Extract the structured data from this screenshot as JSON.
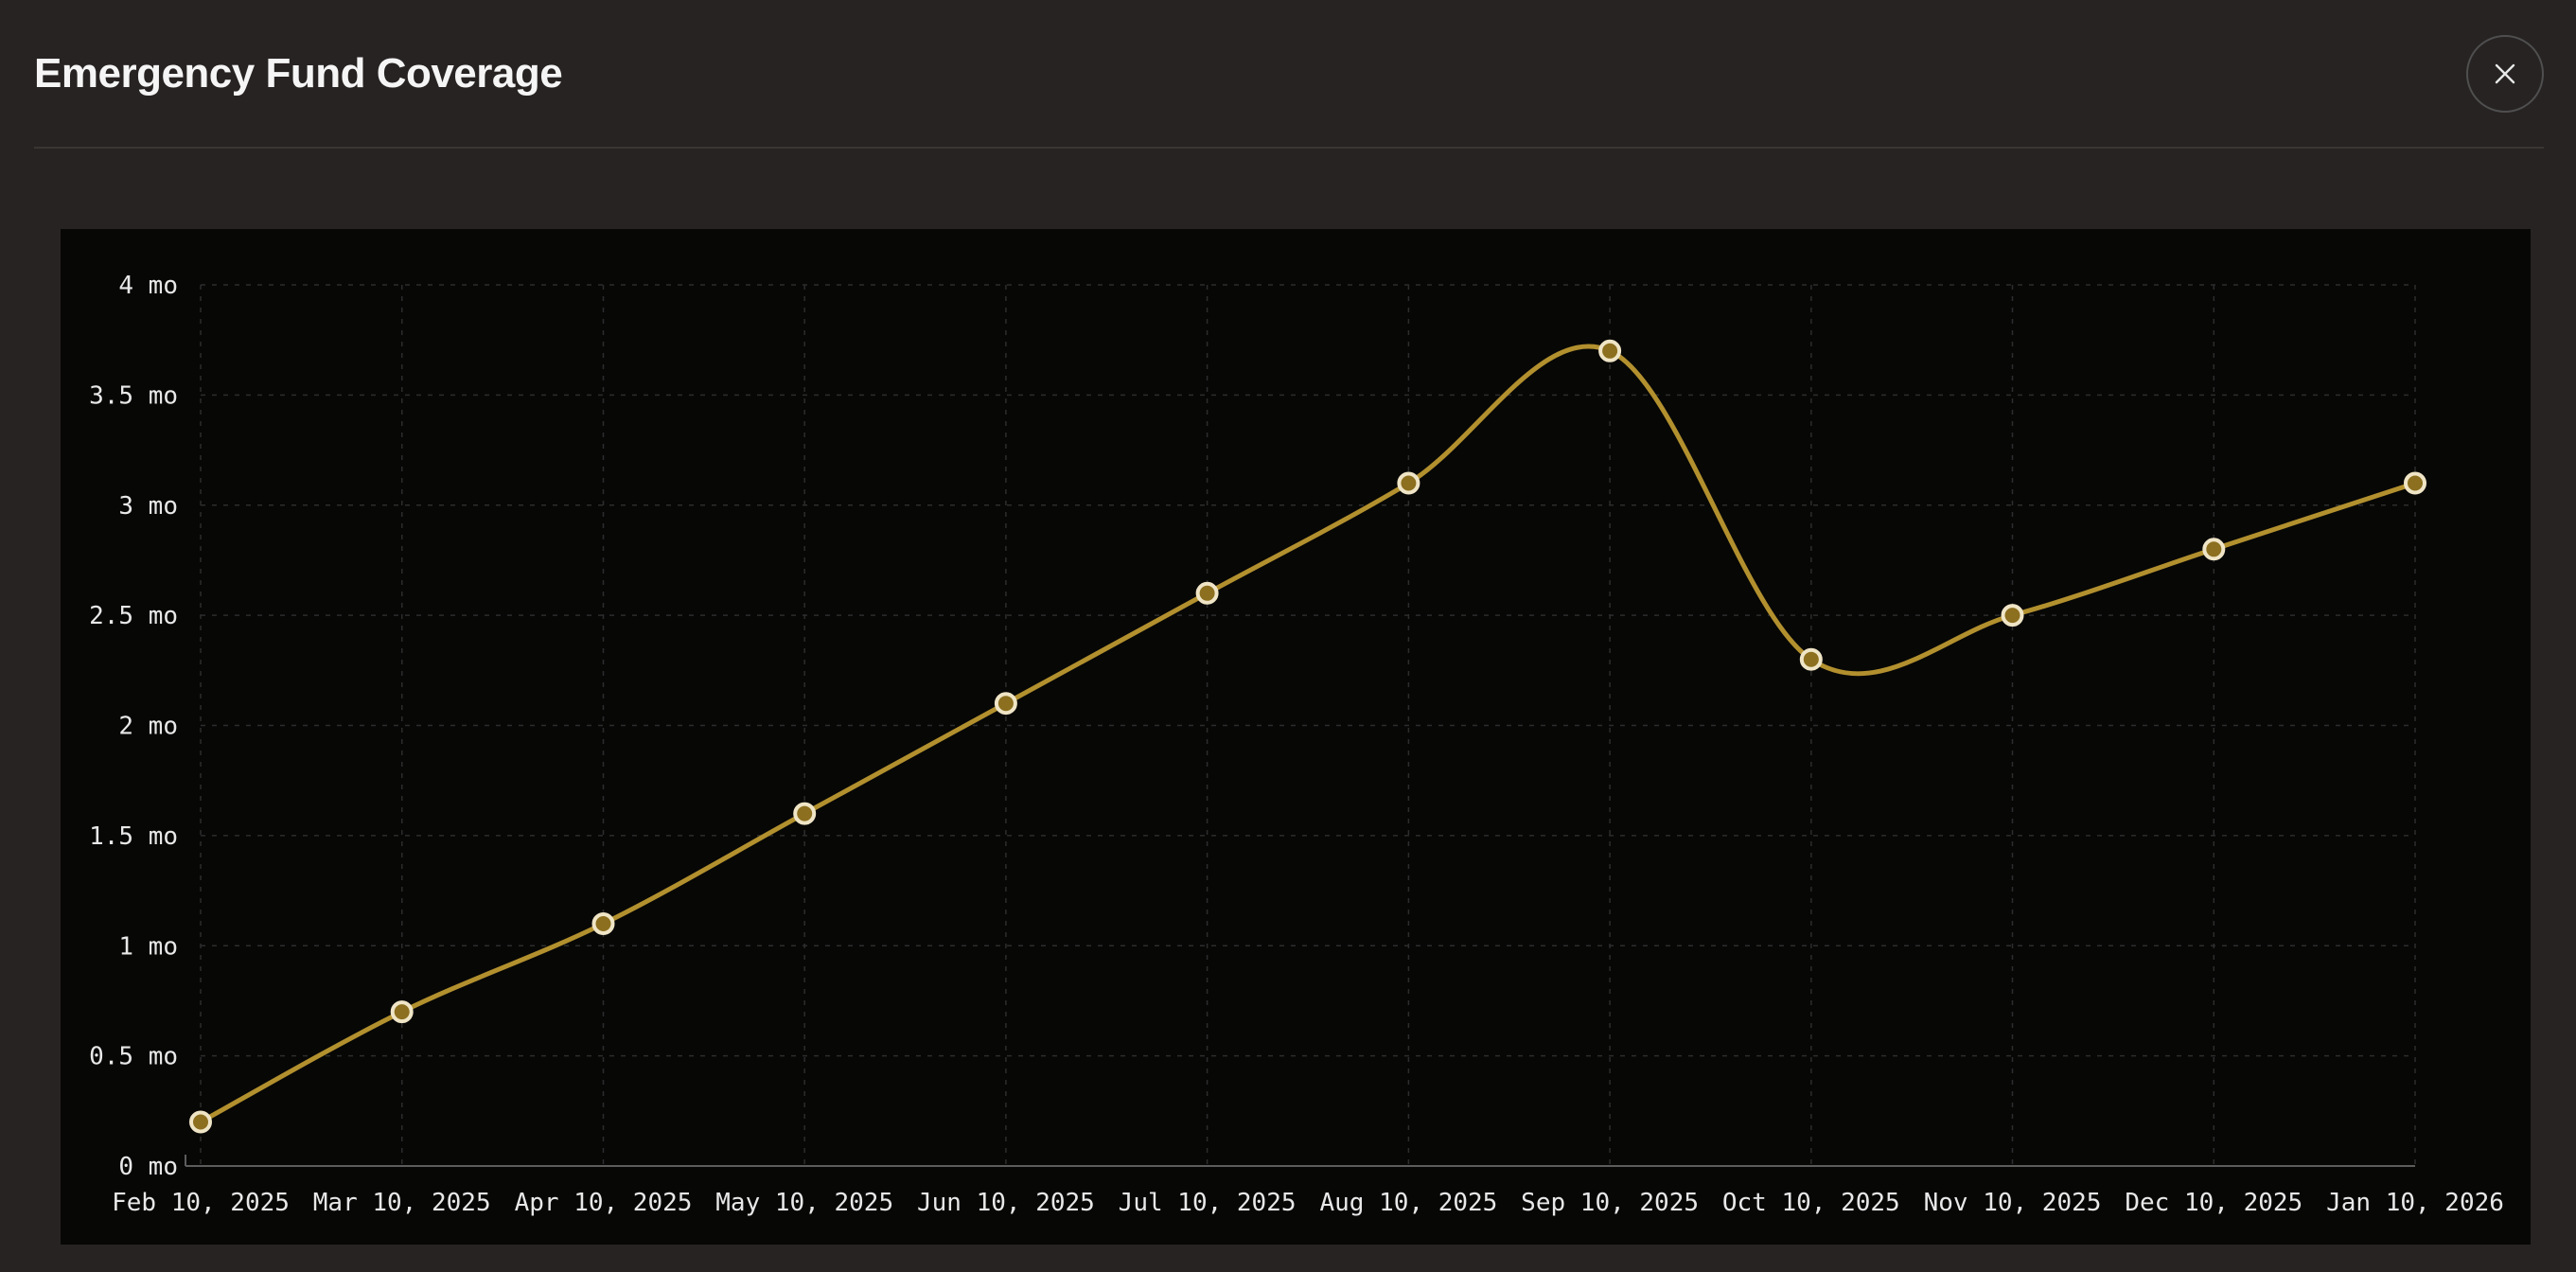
{
  "modal": {
    "title": "Emergency Fund Coverage",
    "close_label": "Close"
  },
  "chart_data": {
    "type": "line",
    "title": "Emergency Fund Coverage",
    "x": [
      "Feb 10, 2025",
      "Mar 10, 2025",
      "Apr 10, 2025",
      "May 10, 2025",
      "Jun 10, 2025",
      "Jul 10, 2025",
      "Aug 10, 2025",
      "Sep 10, 2025",
      "Oct 10, 2025",
      "Nov 10, 2025",
      "Dec 10, 2025",
      "Jan 10, 2026"
    ],
    "series": [
      {
        "name": "Emergency Fund Coverage",
        "values": [
          0.2,
          0.7,
          1.1,
          1.6,
          2.1,
          2.6,
          3.1,
          3.7,
          2.3,
          2.5,
          2.8,
          3.1
        ]
      }
    ],
    "xlabel": "",
    "ylabel": "",
    "y_unit": "mo",
    "y_ticks": [
      0,
      0.5,
      1,
      1.5,
      2,
      2.5,
      3,
      3.5,
      4
    ],
    "y_tick_labels": [
      "0 mo",
      "0.5 mo",
      "1 mo",
      "1.5 mo",
      "2 mo",
      "2.5 mo",
      "3 mo",
      "3.5 mo",
      "4 mo"
    ],
    "ylim": [
      0,
      4
    ],
    "grid": true,
    "grid_style": "dashed",
    "legend": false,
    "line_style": "smooth",
    "colors": {
      "line": "#b2902e",
      "marker_fill": "#8c6f1f",
      "marker_stroke": "#efe5c6",
      "grid": "#2d2d2d",
      "axis": "#5c5c5c",
      "tick_label": "#e8e8e8",
      "plot_background": "#070706",
      "page_background": "#272322",
      "title": "#f5f5f5"
    }
  }
}
